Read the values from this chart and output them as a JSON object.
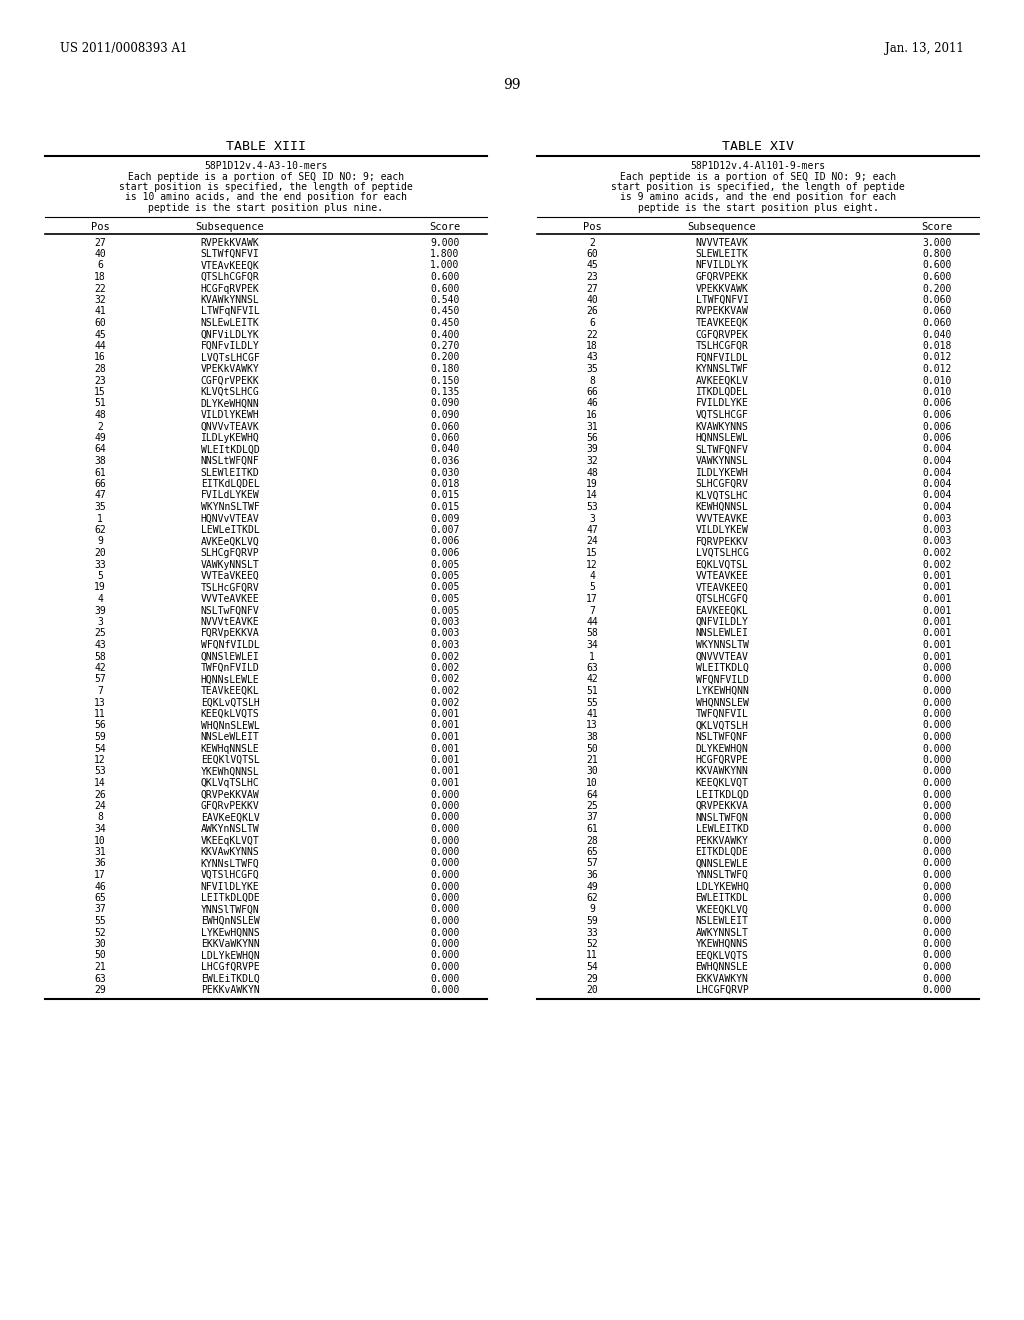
{
  "header_left": "US 2011/0008393 A1",
  "header_right": "Jan. 13, 2011",
  "page_number": "99",
  "table13_title": "TABLE XIII",
  "table13_subtitle_lines": [
    "58P1D12v.4-A3-10-mers",
    "Each peptide is a portion of SEQ ID NO: 9; each",
    "start position is specified, the length of peptide",
    "is 10 amino acids, and the end position for each",
    "peptide is the start position plus nine."
  ],
  "table13_col_headers": [
    "Pos",
    "Subsequence",
    "Score"
  ],
  "table13_data": [
    [
      "27",
      "RVPEkKVAWK",
      "9.000"
    ],
    [
      "40",
      "SLTWfQNFVI",
      "1.800"
    ],
    [
      "6",
      "VTEAvKEEQK",
      "1.000"
    ],
    [
      "18",
      "QTSLhCGFQR",
      "0.600"
    ],
    [
      "22",
      "HCGFqRVPEK",
      "0.600"
    ],
    [
      "32",
      "KVAWkYNNSL",
      "0.540"
    ],
    [
      "41",
      "LTWFqNFVIL",
      "0.450"
    ],
    [
      "60",
      "NSLEwLEITK",
      "0.450"
    ],
    [
      "45",
      "QNFViLDLYK",
      "0.400"
    ],
    [
      "44",
      "FQNFvILDLY",
      "0.270"
    ],
    [
      "16",
      "LVQTsLHCGF",
      "0.200"
    ],
    [
      "28",
      "VPEKkVAWKY",
      "0.180"
    ],
    [
      "23",
      "CGFQrVPEKK",
      "0.150"
    ],
    [
      "15",
      "KLVQtSLHCG",
      "0.135"
    ],
    [
      "51",
      "DLYKeWHQNN",
      "0.090"
    ],
    [
      "48",
      "VILDlYKEWH",
      "0.090"
    ],
    [
      "2",
      "QNVVvTEAVK",
      "0.060"
    ],
    [
      "49",
      "ILDLyKEWHQ",
      "0.060"
    ],
    [
      "64",
      "WLEItKDLQD",
      "0.040"
    ],
    [
      "38",
      "NNSLtWFQNF",
      "0.036"
    ],
    [
      "61",
      "SLEWlEITKD",
      "0.030"
    ],
    [
      "66",
      "EITKdLQDEL",
      "0.018"
    ],
    [
      "47",
      "FVILdLYKEW",
      "0.015"
    ],
    [
      "35",
      "WKYNnSLTWF",
      "0.015"
    ],
    [
      "1",
      "HQNVvVTEAV",
      "0.009"
    ],
    [
      "62",
      "LEWLeITKDL",
      "0.007"
    ],
    [
      "9",
      "AVKEeQKLVQ",
      "0.006"
    ],
    [
      "20",
      "SLHCgFQRVP",
      "0.006"
    ],
    [
      "33",
      "VAWKyNNSLT",
      "0.005"
    ],
    [
      "5",
      "VVTEaVKEEQ",
      "0.005"
    ],
    [
      "19",
      "TSLHcGFQRV",
      "0.005"
    ],
    [
      "4",
      "VVVTeAVKEE",
      "0.005"
    ],
    [
      "39",
      "NSLTwFQNFV",
      "0.005"
    ],
    [
      "3",
      "NVVVtEAVKE",
      "0.003"
    ],
    [
      "25",
      "FQRVpEKKVA",
      "0.003"
    ],
    [
      "43",
      "WFQNfVILDL",
      "0.003"
    ],
    [
      "58",
      "QNNSlEWLEI",
      "0.002"
    ],
    [
      "42",
      "TWFQnFVILD",
      "0.002"
    ],
    [
      "57",
      "HQNNsLEWLE",
      "0.002"
    ],
    [
      "7",
      "TEAVkEEQKL",
      "0.002"
    ],
    [
      "13",
      "EQKLvQTSLH",
      "0.002"
    ],
    [
      "11",
      "KEEQkLVQTS",
      "0.001"
    ],
    [
      "56",
      "WHQNnSLEWL",
      "0.001"
    ],
    [
      "59",
      "NNSLeWLEIT",
      "0.001"
    ],
    [
      "54",
      "KEWHqNNSLE",
      "0.001"
    ],
    [
      "12",
      "EEQKlVQTSL",
      "0.001"
    ],
    [
      "53",
      "YKEWhQNNSL",
      "0.001"
    ],
    [
      "14",
      "QKLVqTSLHC",
      "0.001"
    ],
    [
      "26",
      "QRVPeKKVAW",
      "0.000"
    ],
    [
      "24",
      "GFQRvPEKKV",
      "0.000"
    ],
    [
      "8",
      "EAVKeEQKLV",
      "0.000"
    ],
    [
      "34",
      "AWKYnNSLTW",
      "0.000"
    ],
    [
      "10",
      "VKEEqKLVQT",
      "0.000"
    ],
    [
      "31",
      "KKVAwKYNNS",
      "0.000"
    ],
    [
      "36",
      "KYNNsLTWFQ",
      "0.000"
    ],
    [
      "17",
      "VQTSlHCGFQ",
      "0.000"
    ],
    [
      "46",
      "NFVIlDLYKE",
      "0.000"
    ],
    [
      "65",
      "LEITkDLQDE",
      "0.000"
    ],
    [
      "37",
      "YNNSlTWFQN",
      "0.000"
    ],
    [
      "55",
      "EWHQnNSLEW",
      "0.000"
    ],
    [
      "52",
      "LYKEwHQNNS",
      "0.000"
    ],
    [
      "30",
      "EKKVaWKYNN",
      "0.000"
    ],
    [
      "50",
      "LDLYkEWHQN",
      "0.000"
    ],
    [
      "21",
      "LHCGfQRVPE",
      "0.000"
    ],
    [
      "63",
      "EWLEiTKDLQ",
      "0.000"
    ],
    [
      "29",
      "PEKKvAWKYN",
      "0.000"
    ]
  ],
  "table14_title": "TABLE XIV",
  "table14_subtitle_lines": [
    "58P1D12v.4-Al101-9-mers",
    "Each peptide is a portion of SEQ ID NO: 9; each",
    "start position is specified, the length of peptide",
    "is 9 amino acids, and the end position for each",
    "peptide is the start position plus eight."
  ],
  "table14_col_headers": [
    "Pos",
    "Subsequence",
    "Score"
  ],
  "table14_data": [
    [
      "2",
      "NVVVTEAVK",
      "3.000"
    ],
    [
      "60",
      "SLEWLEITK",
      "0.800"
    ],
    [
      "45",
      "NFVILDLYK",
      "0.600"
    ],
    [
      "23",
      "GFQRVPEKK",
      "0.600"
    ],
    [
      "27",
      "VPEKKVAWK",
      "0.200"
    ],
    [
      "40",
      "LTWFQNFVI",
      "0.060"
    ],
    [
      "26",
      "RVPEKKVAW",
      "0.060"
    ],
    [
      "6",
      "TEAVKEEQK",
      "0.060"
    ],
    [
      "22",
      "CGFQRVPEK",
      "0.040"
    ],
    [
      "18",
      "TSLHCGFQR",
      "0.018"
    ],
    [
      "43",
      "FQNFVILDL",
      "0.012"
    ],
    [
      "35",
      "KYNNSLTWF",
      "0.012"
    ],
    [
      "8",
      "AVKEEQKLV",
      "0.010"
    ],
    [
      "66",
      "ITKDLQDEL",
      "0.010"
    ],
    [
      "46",
      "FVILDLYKE",
      "0.006"
    ],
    [
      "16",
      "VQTSLHCGF",
      "0.006"
    ],
    [
      "31",
      "KVAWKYNNS",
      "0.006"
    ],
    [
      "56",
      "HQNNSLEWL",
      "0.006"
    ],
    [
      "39",
      "SLTWFQNFV",
      "0.004"
    ],
    [
      "32",
      "VAWKYNNSL",
      "0.004"
    ],
    [
      "48",
      "ILDLYKEWH",
      "0.004"
    ],
    [
      "19",
      "SLHCGFQRV",
      "0.004"
    ],
    [
      "14",
      "KLVQTSLHC",
      "0.004"
    ],
    [
      "53",
      "KEWHQNNSL",
      "0.004"
    ],
    [
      "3",
      "VVVTEAVKE",
      "0.003"
    ],
    [
      "47",
      "VILDLYKEW",
      "0.003"
    ],
    [
      "24",
      "FQRVPEKKV",
      "0.003"
    ],
    [
      "15",
      "LVQTSLHCG",
      "0.002"
    ],
    [
      "12",
      "EQKLVQTSL",
      "0.002"
    ],
    [
      "4",
      "VVTEAVKEE",
      "0.001"
    ],
    [
      "5",
      "VTEAVKEEQ",
      "0.001"
    ],
    [
      "17",
      "QTSLHCGFQ",
      "0.001"
    ],
    [
      "7",
      "EAVKEEQKL",
      "0.001"
    ],
    [
      "44",
      "QNFVILDLY",
      "0.001"
    ],
    [
      "58",
      "NNSLEWLEI",
      "0.001"
    ],
    [
      "34",
      "WKYNNSLTW",
      "0.001"
    ],
    [
      "1",
      "QNVVVTEAV",
      "0.001"
    ],
    [
      "63",
      "WLEITKDLQ",
      "0.000"
    ],
    [
      "42",
      "WFQNFVILD",
      "0.000"
    ],
    [
      "51",
      "LYKEWHQNN",
      "0.000"
    ],
    [
      "55",
      "WHQNNSLEW",
      "0.000"
    ],
    [
      "41",
      "TWFQNFVIL",
      "0.000"
    ],
    [
      "13",
      "QKLVQTSLH",
      "0.000"
    ],
    [
      "38",
      "NSLTWFQNF",
      "0.000"
    ],
    [
      "50",
      "DLYKEWHQN",
      "0.000"
    ],
    [
      "21",
      "HCGFQRVPE",
      "0.000"
    ],
    [
      "30",
      "KKVAWKYNN",
      "0.000"
    ],
    [
      "10",
      "KEEQKLVQT",
      "0.000"
    ],
    [
      "64",
      "LEITKDLQD",
      "0.000"
    ],
    [
      "25",
      "QRVPEKKVA",
      "0.000"
    ],
    [
      "37",
      "NNSLTWFQN",
      "0.000"
    ],
    [
      "61",
      "LEWLEITKD",
      "0.000"
    ],
    [
      "28",
      "PEKKVAWKY",
      "0.000"
    ],
    [
      "65",
      "EITKDLQDE",
      "0.000"
    ],
    [
      "57",
      "QNNSLEWLE",
      "0.000"
    ],
    [
      "36",
      "YNNSLTWFQ",
      "0.000"
    ],
    [
      "49",
      "LDLYKEWHQ",
      "0.000"
    ],
    [
      "62",
      "EWLEITKDL",
      "0.000"
    ],
    [
      "9",
      "VKEEQKLVQ",
      "0.000"
    ],
    [
      "59",
      "NSLEWLEIT",
      "0.000"
    ],
    [
      "33",
      "AWKYNNSLT",
      "0.000"
    ],
    [
      "52",
      "YKEWHQNNS",
      "0.000"
    ],
    [
      "11",
      "EEQKLVQTS",
      "0.000"
    ],
    [
      "54",
      "EWHQNNSLE",
      "0.000"
    ],
    [
      "29",
      "EKKVAWKYN",
      "0.000"
    ],
    [
      "20",
      "LHCGFQRVP",
      "0.000"
    ]
  ]
}
